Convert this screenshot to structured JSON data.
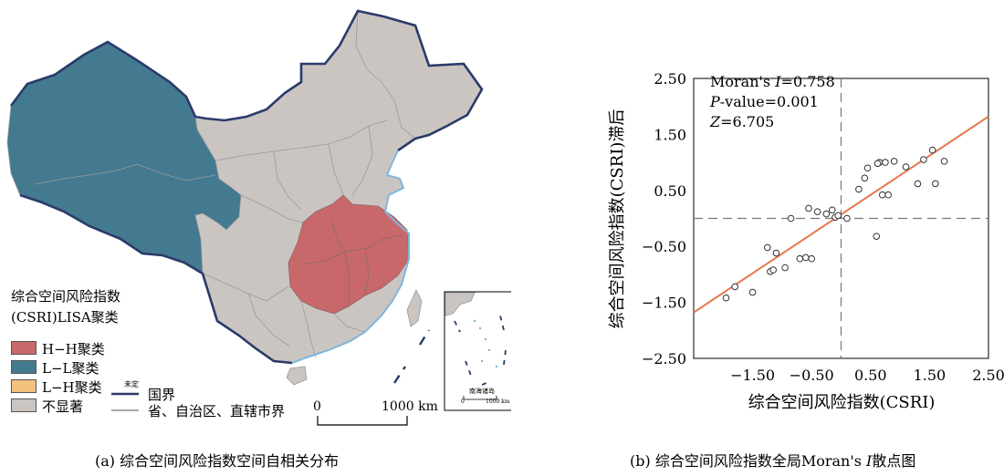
{
  "map": {
    "legend_title_line1": "综合空间风险指数",
    "legend_title_line2": "(CSRI)LISA聚类",
    "legend_items": [
      {
        "label": "H−H聚类",
        "color": "#c8686a"
      },
      {
        "label": "L−L聚类",
        "color": "#437a8f"
      },
      {
        "label": "L−H聚类",
        "color": "#f2c17e"
      },
      {
        "label": "不显著",
        "color": "#cbc5c2"
      }
    ],
    "boundary_national_label": "国界",
    "boundary_national_note": "未定",
    "boundary_province_label": "省、自治区、直辖市界",
    "scale_zero": "0",
    "scale_end": "1000 km",
    "inset_label": "南海诸岛",
    "inset_scale_zero": "0",
    "inset_scale_end": "1000 km",
    "border_color": "#2a3a6a",
    "water_color": "#7fb6dd",
    "caption": "(a) 综合空间风险指数空间自相关分布"
  },
  "chart_data": {
    "type": "scatter",
    "xlabel": "综合空间风险指数(CSRI)",
    "ylabel": "综合空间风险指数(CSRI)滞后",
    "xlim": [
      -2.5,
      2.5
    ],
    "ylim": [
      -2.5,
      2.5
    ],
    "xticks": [
      "−1.50",
      "−0.50",
      "0.50",
      "1.50",
      "2.50"
    ],
    "xtick_values": [
      -1.5,
      -0.5,
      0.5,
      1.5,
      2.5
    ],
    "yticks": [
      "2.50",
      "1.50",
      "0.50",
      "−0.50",
      "−1.50",
      "−2.50"
    ],
    "ytick_values": [
      2.5,
      1.5,
      0.5,
      -0.5,
      -1.5,
      -2.5
    ],
    "stats": {
      "moran_prefix": "Moran's ",
      "moran_var": "I",
      "moran_value": "=0.758",
      "p_var": "P",
      "p_value": "-value=0.001",
      "z_var": "Z",
      "z_value": "=6.705"
    },
    "fit_line": {
      "x": [
        -2.5,
        2.5
      ],
      "y": [
        -1.68,
        1.82
      ],
      "color": "#e8764a"
    },
    "points": {
      "x": [
        -1.95,
        -1.8,
        -1.5,
        -1.25,
        -1.2,
        -1.15,
        -1.1,
        -0.95,
        -0.85,
        -0.7,
        -0.6,
        -0.55,
        -0.5,
        -0.4,
        -0.25,
        -0.15,
        -0.1,
        0.1,
        0.3,
        0.4,
        0.45,
        0.6,
        0.65,
        0.7,
        0.75,
        0.8,
        0.9,
        1.1,
        1.3,
        1.4,
        1.55,
        1.6,
        1.75,
        -0.05,
        0.62
      ],
      "y": [
        -1.42,
        -1.22,
        -1.32,
        -0.52,
        -0.95,
        -0.92,
        -0.62,
        -0.88,
        0.0,
        -0.72,
        -0.7,
        0.18,
        -0.72,
        0.12,
        0.08,
        0.15,
        0.02,
        0.0,
        0.52,
        0.72,
        0.9,
        -0.32,
        1.0,
        0.42,
        1.0,
        0.42,
        1.02,
        0.92,
        0.62,
        1.05,
        1.22,
        0.62,
        1.02,
        0.05,
        0.98
      ]
    },
    "caption_before": "(b) 综合空间风险指数全局Moran's ",
    "caption_var": "I",
    "caption_after": "散点图"
  }
}
